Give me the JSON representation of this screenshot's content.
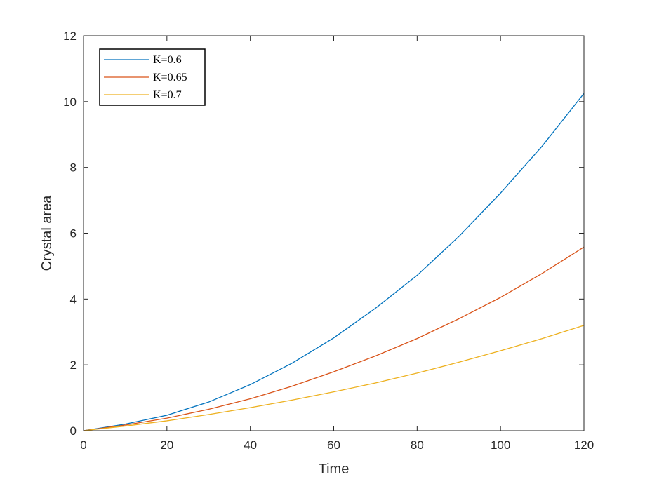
{
  "chart_data": {
    "type": "line",
    "title": "",
    "xlabel": "Time",
    "ylabel": "Crystal area",
    "xlim": [
      0,
      120
    ],
    "ylim": [
      0,
      12
    ],
    "xticks": [
      "0",
      "20",
      "40",
      "60",
      "80",
      "100",
      "120"
    ],
    "yticks": [
      "0",
      "2",
      "4",
      "6",
      "8",
      "10",
      "12"
    ],
    "grid": false,
    "box": true,
    "legend_position": "top-left",
    "x": [
      0,
      10,
      20,
      30,
      40,
      50,
      60,
      70,
      80,
      90,
      100,
      110,
      120
    ],
    "series": [
      {
        "name": "K=0.6",
        "color": "#0072BD",
        "values": [
          0,
          0.2,
          0.47,
          0.87,
          1.4,
          2.05,
          2.82,
          3.72,
          4.72,
          5.9,
          7.22,
          8.65,
          10.25
        ]
      },
      {
        "name": "K=0.65",
        "color": "#D95319",
        "values": [
          0,
          0.17,
          0.38,
          0.65,
          0.97,
          1.35,
          1.79,
          2.27,
          2.8,
          3.4,
          4.05,
          4.78,
          5.58
        ]
      },
      {
        "name": "K=0.7",
        "color": "#EDB120",
        "values": [
          0,
          0.14,
          0.3,
          0.49,
          0.7,
          0.93,
          1.18,
          1.45,
          1.75,
          2.08,
          2.43,
          2.8,
          3.2
        ]
      }
    ]
  }
}
